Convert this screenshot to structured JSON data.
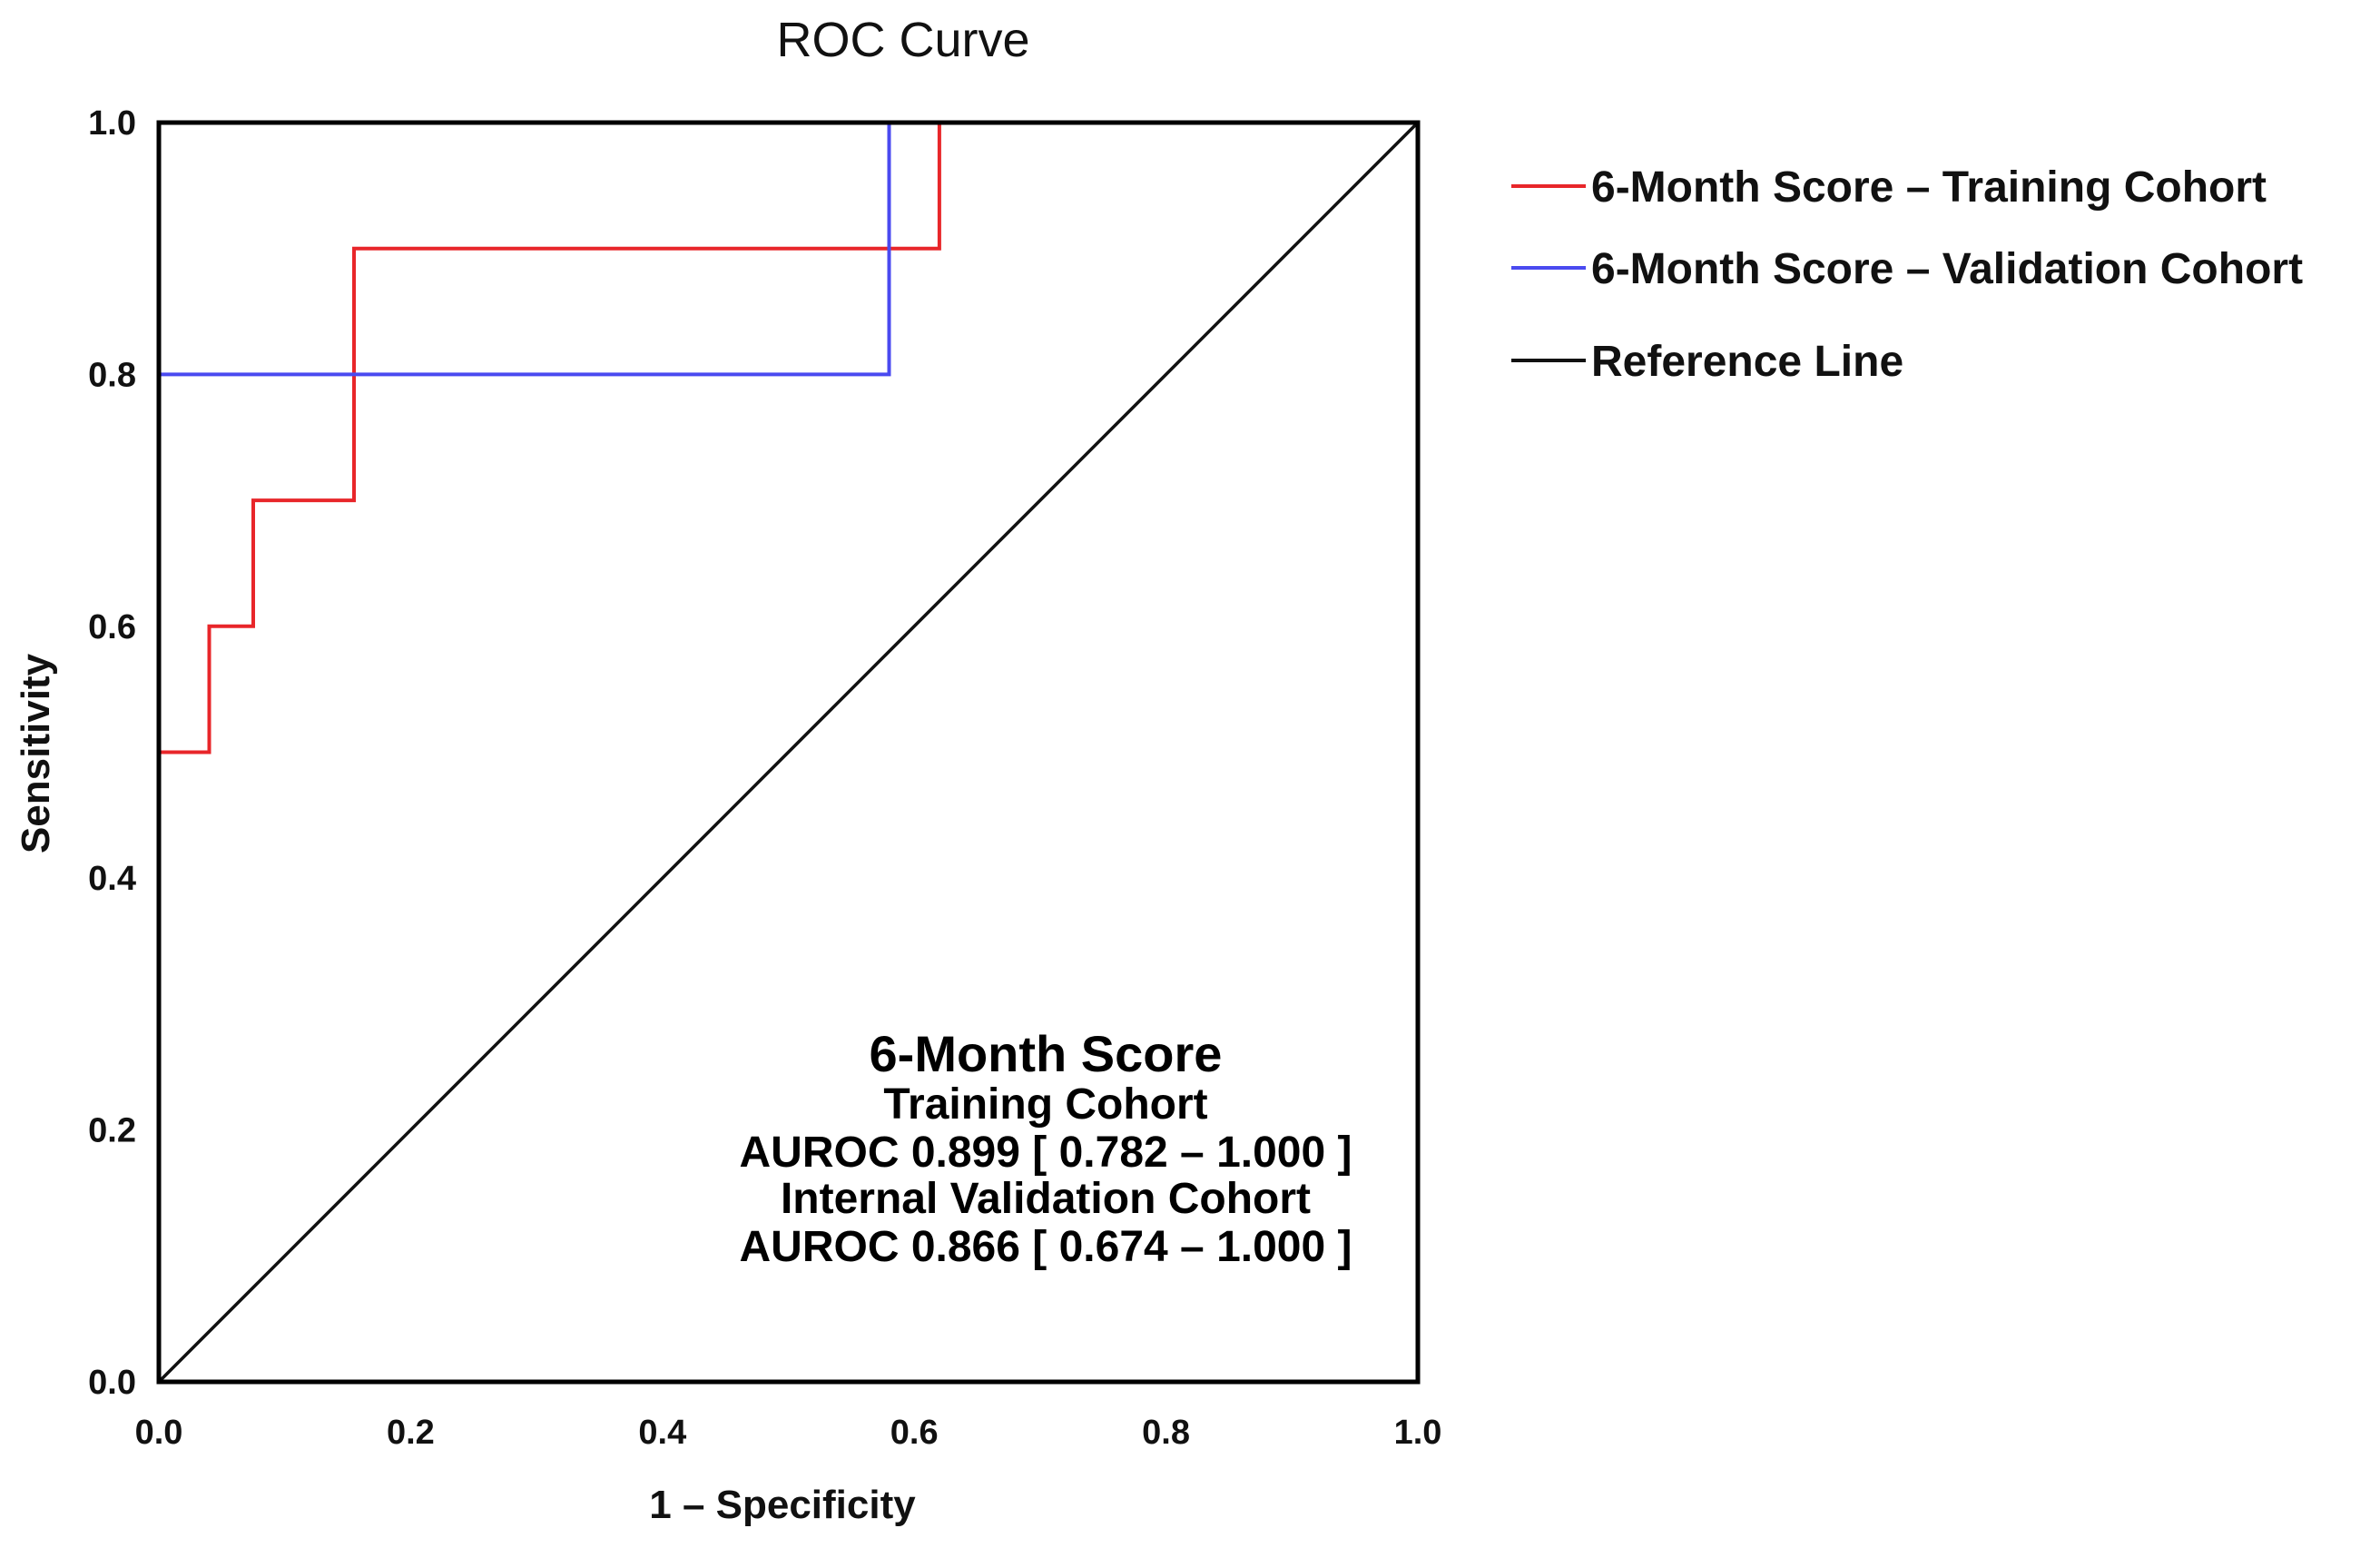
{
  "chart_data": {
    "type": "line",
    "title": "ROC Curve",
    "xlabel": "1 – Specificity",
    "ylabel": "Sensitivity",
    "xlim": [
      0,
      1
    ],
    "ylim": [
      0,
      1
    ],
    "xticks": [
      "0.0",
      "0.2",
      "0.4",
      "0.6",
      "0.8",
      "1.0"
    ],
    "yticks": [
      "0.0",
      "0.2",
      "0.4",
      "0.6",
      "0.8",
      "1.0"
    ],
    "grid": false,
    "legend_position": "right",
    "series": [
      {
        "name": "6-Month Score – Training Cohort",
        "color": "#e8262a",
        "step": true,
        "x": [
          0.0,
          0.0,
          0.04,
          0.04,
          0.075,
          0.075,
          0.155,
          0.155,
          0.62,
          0.62
        ],
        "y": [
          0.0,
          0.5,
          0.5,
          0.6,
          0.6,
          0.7,
          0.7,
          0.9,
          0.9,
          1.0
        ]
      },
      {
        "name": "6-Month Score – Validation Cohort",
        "color": "#4a4af0",
        "step": true,
        "x": [
          0.0,
          0.0,
          0.58,
          0.58
        ],
        "y": [
          0.0,
          0.8,
          0.8,
          1.0
        ]
      },
      {
        "name": "Reference Line",
        "color": "#111111",
        "step": false,
        "x": [
          0.0,
          1.0
        ],
        "y": [
          0.0,
          1.0
        ]
      }
    ],
    "annotation": {
      "heading": "6-Month Score",
      "lines": [
        "Training Cohort",
        "AUROC  0.899 [ 0.782 – 1.000 ]",
        "Internal Validation Cohort",
        "AUROC 0.866 [ 0.674 – 1.000 ]"
      ]
    }
  }
}
